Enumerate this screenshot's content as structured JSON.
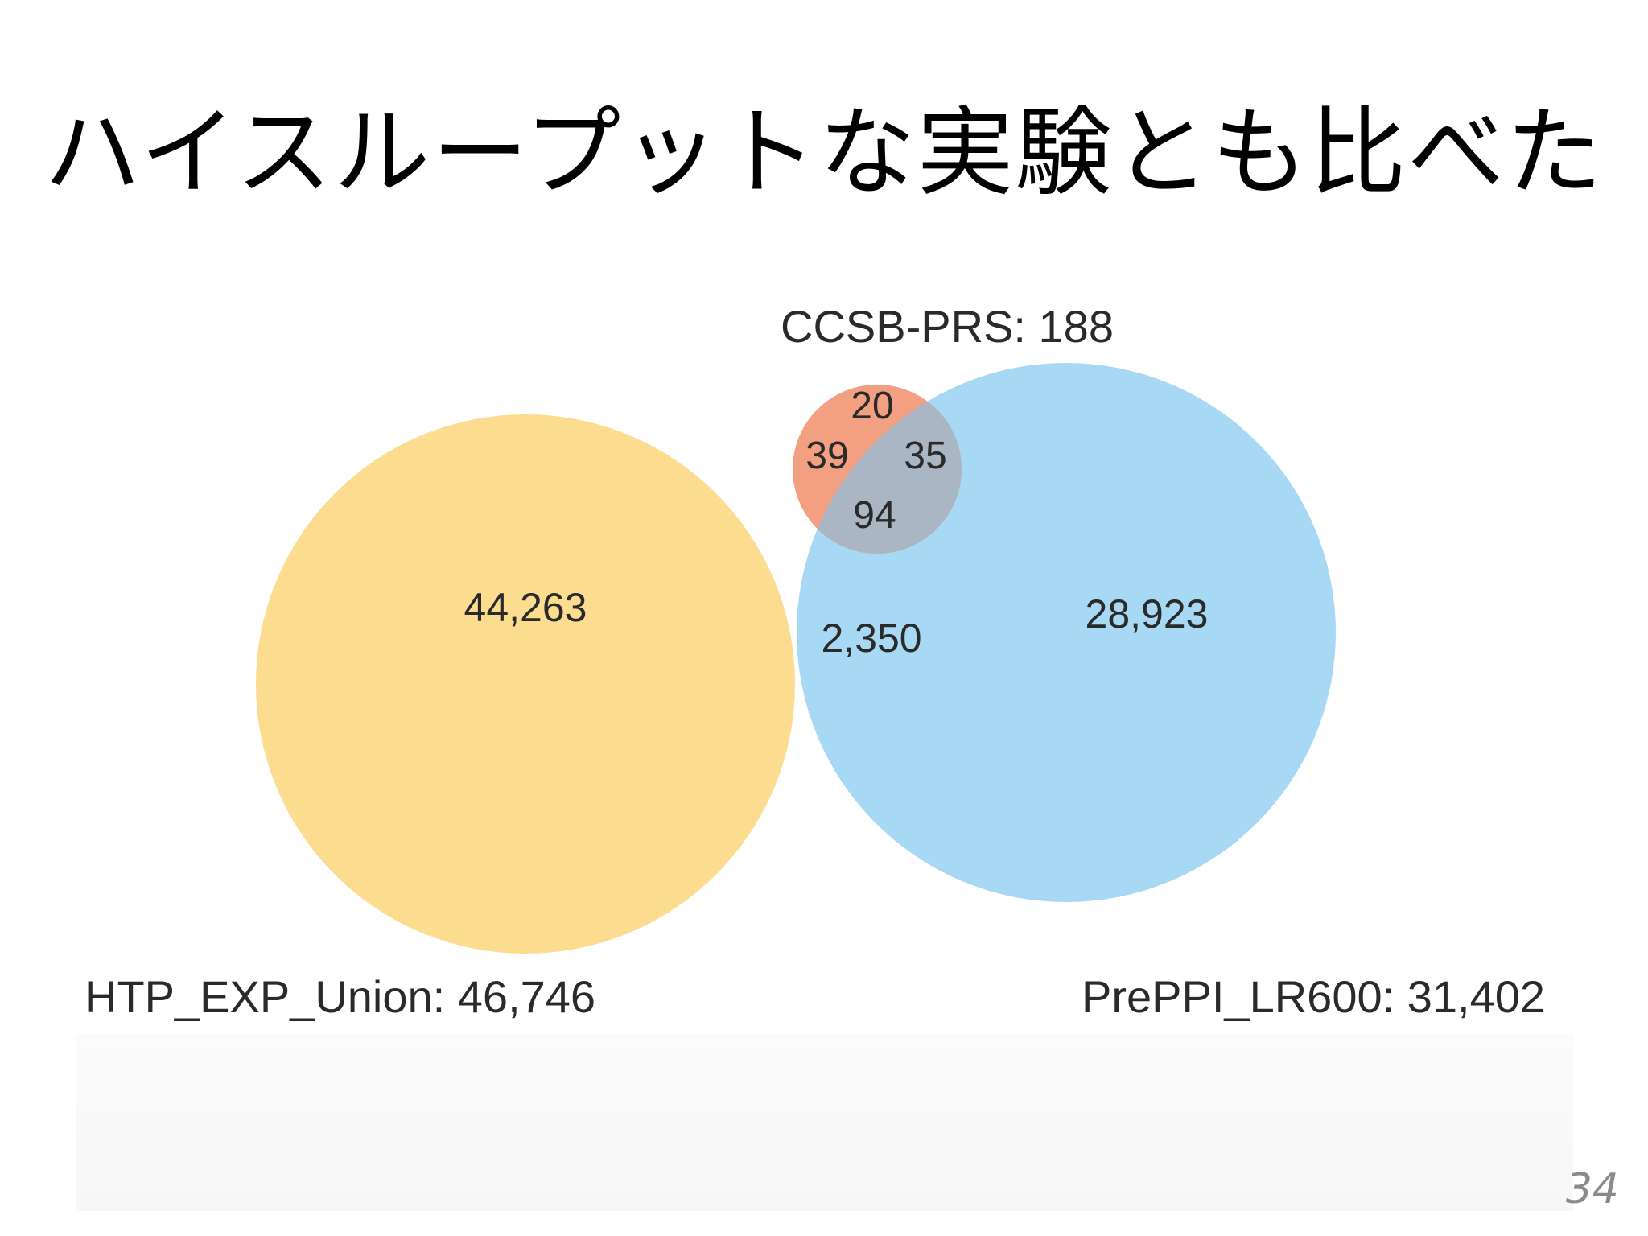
{
  "slide": {
    "title": "ハイスループットな実験とも比べた",
    "page_number": "34"
  },
  "venn": {
    "sets": [
      {
        "name": "HTP_EXP_Union: 46,746",
        "color": "#fcdc8f"
      },
      {
        "name": "PrePPI_LR600: 31,402",
        "color": "#a7d9f4"
      },
      {
        "name": "CCSB-PRS: 188",
        "color": "#f2a081"
      }
    ],
    "regions": {
      "htp_only": "44,263",
      "prepi_only": "28,923",
      "ccsb_only": "20",
      "htp_ccsb": "39",
      "prepi_ccsb": "35",
      "all_three": "94",
      "htp_prepi": "2,350"
    },
    "colors": {
      "overlap_htp_prepi": "#9ec6a9",
      "overlap_htp_ccsb": "#eea459",
      "overlap_prepi_ccsb": "#aab6c4",
      "overlap_all": "#a8ad95",
      "separator": "#ffffff"
    }
  }
}
